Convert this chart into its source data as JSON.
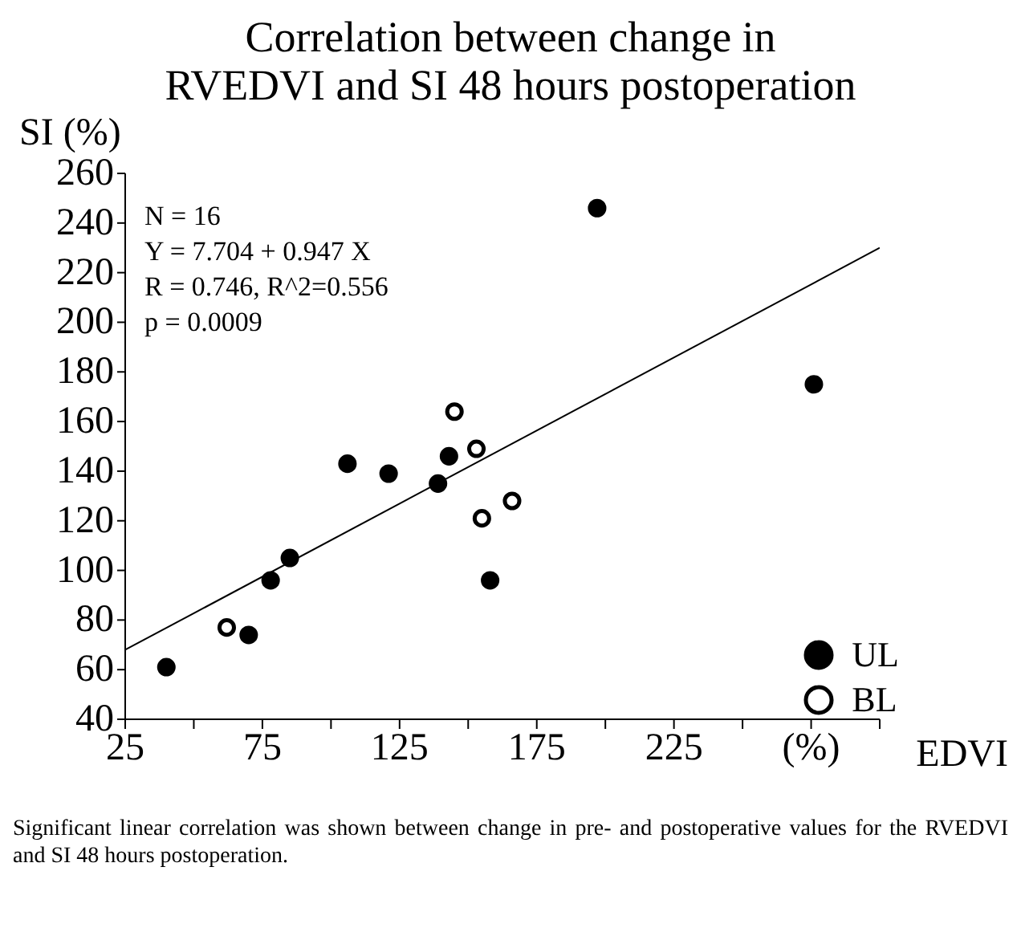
{
  "chart_data": {
    "type": "scatter",
    "title": "Correlation between change in\nRVEDVI and SI 48 hours postoperation",
    "xlabel": "EDVI",
    "ylabel": "SI (%)",
    "annotations": [
      "N = 16",
      "Y = 7.704 + 0.947 X",
      "R = 0.746, R^2=0.556",
      "p = 0.0009",
      "Significant linear correlation was shown between change in pre- and postoperative values for the RVEDVI and SI 48 hours postoperation."
    ],
    "series": [
      {
        "name": "UL",
        "color": "#000000",
        "x": [
          40,
          70,
          78,
          85,
          106,
          121,
          139,
          143,
          158,
          197,
          276
        ],
        "values": [
          61,
          74,
          96,
          105,
          143,
          139,
          135,
          146,
          96,
          246,
          175
        ]
      },
      {
        "name": "BL",
        "color": "#ffffff",
        "x": [
          62,
          145,
          153,
          155,
          166
        ],
        "values": [
          77,
          164,
          149,
          121,
          128
        ]
      },
      {
        "type": "line",
        "color": "#000000",
        "x": [
          25,
          300
        ],
        "values": [
          68,
          230
        ]
      }
    ],
    "xlim": [
      25,
      300
    ],
    "xticks": [
      25,
      {
        "value": 50,
        "label": null
      },
      75,
      {
        "value": 100,
        "label": null
      },
      125,
      {
        "value": 150,
        "label": null
      },
      175,
      {
        "value": 200,
        "label": null
      },
      225,
      {
        "value": 250,
        "label": null
      },
      {
        "value": 275,
        "label": "(%)"
      },
      {
        "value": 300,
        "label": null
      }
    ],
    "ylim": [
      40,
      260
    ],
    "yticks": [
      40,
      60,
      80,
      100,
      120,
      140,
      160,
      180,
      200,
      220,
      240,
      260
    ],
    "grid": false,
    "legend": "bottom right"
  }
}
